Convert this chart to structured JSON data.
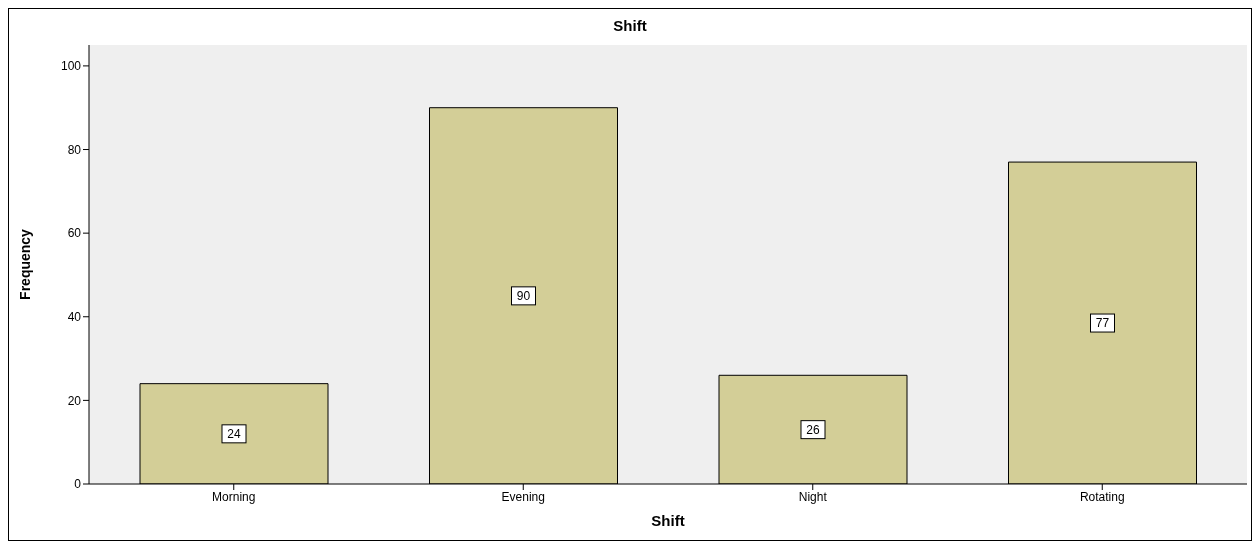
{
  "chart_data": {
    "type": "bar",
    "title": "Shift",
    "xlabel": "Shift",
    "ylabel": "Frequency",
    "categories": [
      "Morning",
      "Evening",
      "Night",
      "Rotating"
    ],
    "values": [
      24,
      90,
      26,
      77
    ],
    "color": "#d3ce97",
    "ylim": [
      0,
      105
    ],
    "yticks": [
      0,
      20,
      40,
      60,
      80,
      100
    ],
    "grid": false,
    "data_labels": true
  }
}
